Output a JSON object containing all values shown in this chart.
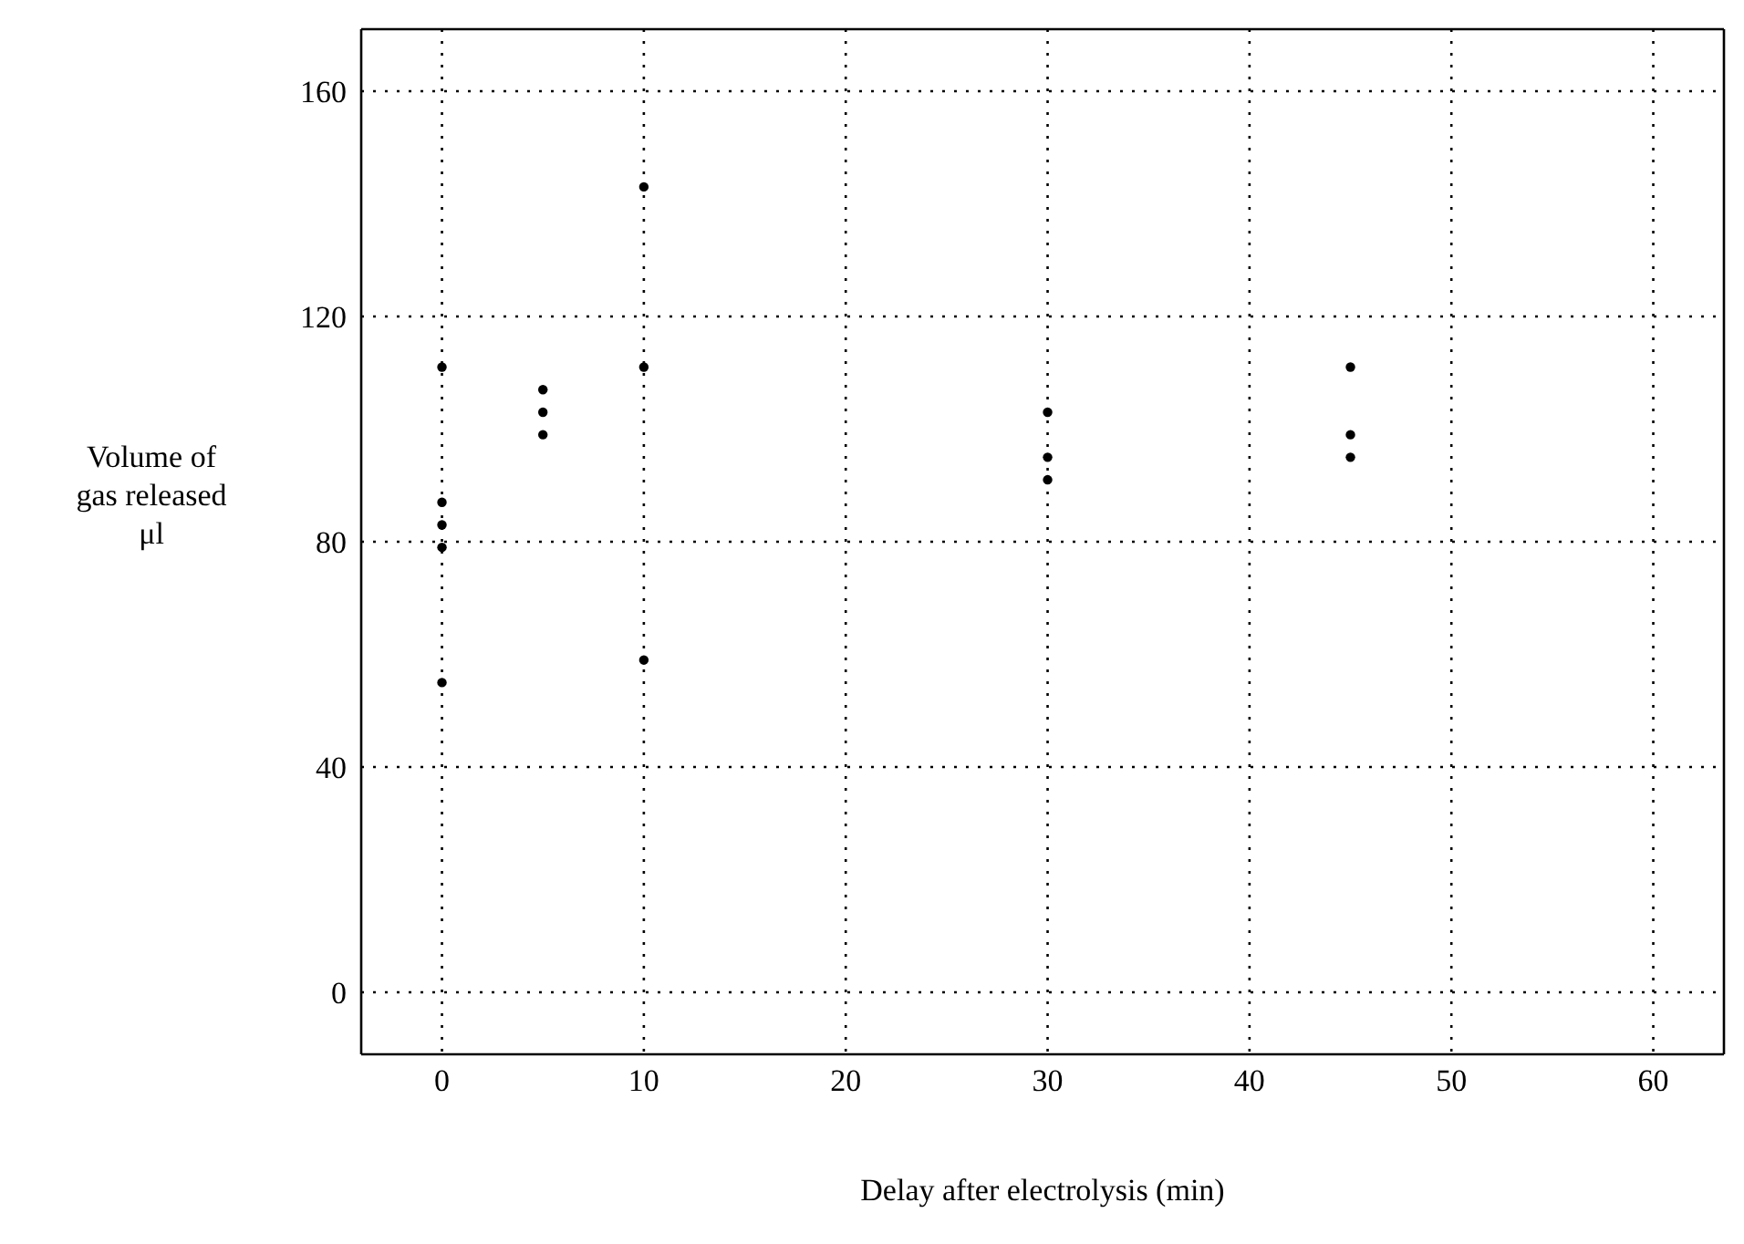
{
  "chart_data": {
    "type": "scatter",
    "xlabel": "Delay after electrolysis (min)",
    "ylabel": "Volume of gas released μl",
    "x": [
      0,
      0,
      0,
      0,
      0,
      5,
      5,
      5,
      10,
      10,
      10,
      30,
      30,
      30,
      45,
      45,
      45
    ],
    "series": [
      {
        "color": "#000000",
        "values": [
          111,
          87,
          83,
          79,
          55,
          107,
          103,
          99,
          143,
          111,
          59,
          103,
          95,
          91,
          111,
          99,
          95
        ]
      }
    ],
    "xlim": [
      -4,
      63.5
    ],
    "xticks": [
      0,
      10,
      20,
      30,
      40,
      50,
      60
    ],
    "ylim": [
      -11,
      171
    ],
    "yticks": [
      0,
      40,
      80,
      120,
      160
    ],
    "grid": true,
    "marker": "circle"
  }
}
